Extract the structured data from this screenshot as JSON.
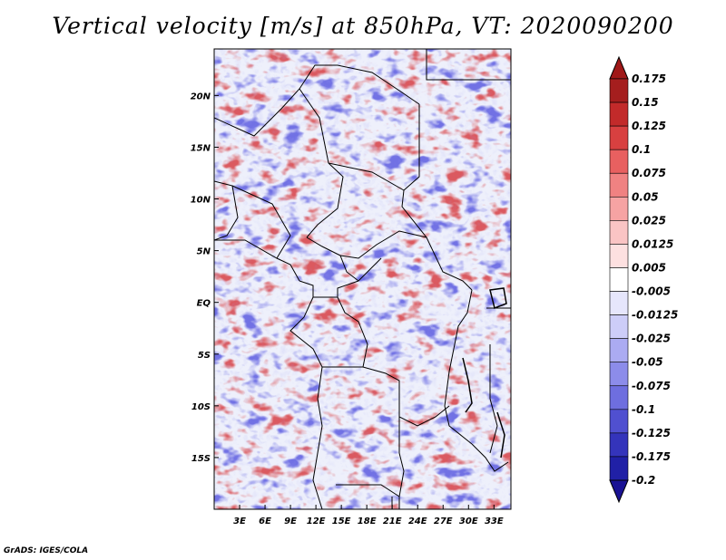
{
  "title": "Vertical velocity [m/s] at 850hPa, VT: 2020090200",
  "credit": "GrADS: IGES/COLA",
  "map": {
    "lon_range": [
      0,
      35
    ],
    "lat_range": [
      -20,
      24.5
    ],
    "lon_ticks": [
      "3E",
      "6E",
      "9E",
      "12E",
      "15E",
      "18E",
      "21E",
      "24E",
      "27E",
      "30E",
      "33E"
    ],
    "lat_ticks": [
      "20N",
      "15N",
      "10N",
      "5N",
      "EQ",
      "5S",
      "10S",
      "15S"
    ]
  },
  "colorbar": {
    "labels": [
      "0.175",
      "0.15",
      "0.125",
      "0.1",
      "0.075",
      "0.05",
      "0.025",
      "0.0125",
      "0.005",
      "-0.005",
      "-0.0125",
      "-0.025",
      "-0.05",
      "-0.075",
      "-0.1",
      "-0.125",
      "-0.175",
      "-0.2"
    ],
    "colors": [
      "#a51e1e",
      "#c22a2a",
      "#d84040",
      "#e86060",
      "#f08282",
      "#f6a3a3",
      "#fac4c4",
      "#fde0e0",
      "#ffffff",
      "#e6e6fc",
      "#cdcdf8",
      "#ababf2",
      "#8c8cea",
      "#6e6edf",
      "#5050d0",
      "#3434bb",
      "#2020a6"
    ],
    "lower_arrow_color": "#1a1294",
    "upper_arrow_color": "#a01818"
  }
}
